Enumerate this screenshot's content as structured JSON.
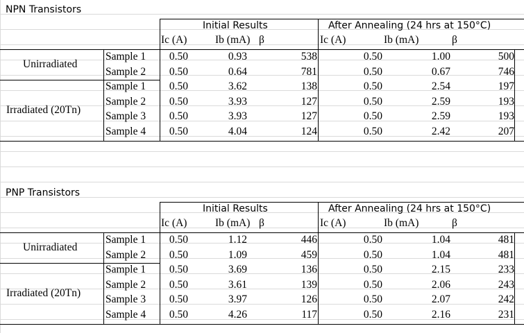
{
  "npn": {
    "title": "NPN Transistors",
    "groups": [
      {
        "name": "Unirradiated",
        "rows": [
          {
            "sample": "Sample 1",
            "ic1": "0.50",
            "ib1": "0.93",
            "b1": "538",
            "ic2": "0.50",
            "ib2": "1.00",
            "b2": "500"
          },
          {
            "sample": "Sample 2",
            "ic1": "0.50",
            "ib1": "0.64",
            "b1": "781",
            "ic2": "0.50",
            "ib2": "0.67",
            "b2": "746"
          }
        ]
      },
      {
        "name": "Irradiated (20Tn)",
        "rows": [
          {
            "sample": "Sample 1",
            "ic1": "0.50",
            "ib1": "3.62",
            "b1": "138",
            "ic2": "0.50",
            "ib2": "2.54",
            "b2": "197"
          },
          {
            "sample": "Sample 2",
            "ic1": "0.50",
            "ib1": "3.93",
            "b1": "127",
            "ic2": "0.50",
            "ib2": "2.59",
            "b2": "193"
          },
          {
            "sample": "Sample 3",
            "ic1": "0.50",
            "ib1": "3.93",
            "b1": "127",
            "ic2": "0.50",
            "ib2": "2.59",
            "b2": "193"
          },
          {
            "sample": "Sample 4",
            "ic1": "0.50",
            "ib1": "4.04",
            "b1": "124",
            "ic2": "0.50",
            "ib2": "2.42",
            "b2": "207"
          }
        ]
      }
    ]
  },
  "pnp": {
    "title": "PNP Transistors",
    "groups": [
      {
        "name": "Unirradiated",
        "rows": [
          {
            "sample": "Sample 1",
            "ic1": "0.50",
            "ib1": "1.12",
            "b1": "446",
            "ic2": "0.50",
            "ib2": "1.04",
            "b2": "481"
          },
          {
            "sample": "Sample 2",
            "ic1": "0.50",
            "ib1": "1.09",
            "b1": "459",
            "ic2": "0.50",
            "ib2": "1.04",
            "b2": "481"
          }
        ]
      },
      {
        "name": "Irradiated (20Tn)",
        "rows": [
          {
            "sample": "Sample 1",
            "ic1": "0.50",
            "ib1": "3.69",
            "b1": "136",
            "ic2": "0.50",
            "ib2": "2.15",
            "b2": "233"
          },
          {
            "sample": "Sample 2",
            "ic1": "0.50",
            "ib1": "3.61",
            "b1": "139",
            "ic2": "0.50",
            "ib2": "2.06",
            "b2": "243"
          },
          {
            "sample": "Sample 3",
            "ic1": "0.50",
            "ib1": "3.97",
            "b1": "126",
            "ic2": "0.50",
            "ib2": "2.07",
            "b2": "242"
          },
          {
            "sample": "Sample 4",
            "ic1": "0.50",
            "ib1": "4.26",
            "b1": "117",
            "ic2": "0.50",
            "ib2": "2.16",
            "b2": "231"
          }
        ]
      }
    ]
  },
  "headers": {
    "initial": "Initial Results",
    "after": "After Annealing (24 hrs at 150°C)",
    "ic": "Ic (A)",
    "ib": "Ib (mA)",
    "beta": "β"
  }
}
